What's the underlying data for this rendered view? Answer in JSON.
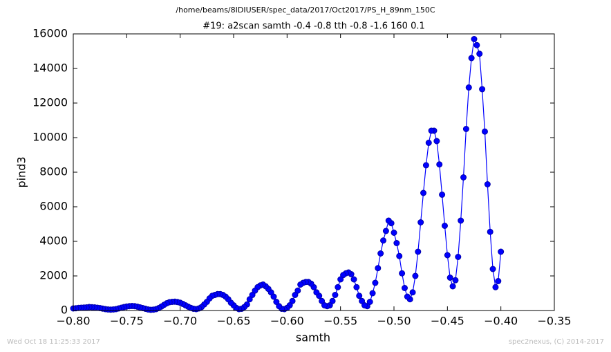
{
  "chart_data": {
    "type": "line",
    "suptitle": "/home/beams/8IDIUSER/spec_data/2017/Oct2017/PS_H_89nm_150C",
    "title": "#19: a2scan  samth -0.4 -0.8  tth -0.8 -1.6  160 0.1",
    "x_label": "samth",
    "y_label": "pind3",
    "footer_left": "Wed Oct 18 11:25:33 2017",
    "footer_right": "spec2nexus, (C) 2014-2017",
    "x": [
      -0.4,
      -0.4025,
      -0.405,
      -0.4075,
      -0.41,
      -0.4125,
      -0.415,
      -0.4175,
      -0.42,
      -0.4225,
      -0.425,
      -0.4275,
      -0.43,
      -0.4325,
      -0.435,
      -0.4375,
      -0.44,
      -0.4425,
      -0.445,
      -0.4475,
      -0.45,
      -0.4525,
      -0.455,
      -0.4575,
      -0.46,
      -0.4625,
      -0.465,
      -0.4675,
      -0.47,
      -0.4725,
      -0.475,
      -0.4775,
      -0.48,
      -0.4825,
      -0.485,
      -0.4875,
      -0.49,
      -0.4925,
      -0.495,
      -0.4975,
      -0.5,
      -0.5025,
      -0.505,
      -0.5075,
      -0.51,
      -0.5125,
      -0.515,
      -0.5175,
      -0.52,
      -0.5225,
      -0.525,
      -0.5275,
      -0.53,
      -0.5325,
      -0.535,
      -0.5375,
      -0.54,
      -0.5425,
      -0.545,
      -0.5475,
      -0.55,
      -0.5525,
      -0.555,
      -0.5575,
      -0.56,
      -0.5625,
      -0.565,
      -0.5675,
      -0.57,
      -0.5725,
      -0.575,
      -0.5775,
      -0.58,
      -0.5825,
      -0.585,
      -0.5875,
      -0.59,
      -0.5925,
      -0.595,
      -0.5975,
      -0.6,
      -0.6025,
      -0.605,
      -0.6075,
      -0.61,
      -0.6125,
      -0.615,
      -0.6175,
      -0.62,
      -0.6225,
      -0.625,
      -0.6275,
      -0.63,
      -0.6325,
      -0.635,
      -0.6375,
      -0.64,
      -0.6425,
      -0.645,
      -0.6475,
      -0.65,
      -0.6525,
      -0.655,
      -0.6575,
      -0.66,
      -0.6625,
      -0.665,
      -0.6675,
      -0.67,
      -0.6725,
      -0.675,
      -0.6775,
      -0.68,
      -0.6825,
      -0.685,
      -0.6875,
      -0.69,
      -0.6925,
      -0.695,
      -0.6975,
      -0.7,
      -0.7025,
      -0.705,
      -0.7075,
      -0.71,
      -0.7125,
      -0.715,
      -0.7175,
      -0.72,
      -0.7225,
      -0.725,
      -0.7275,
      -0.73,
      -0.7325,
      -0.735,
      -0.7375,
      -0.74,
      -0.7425,
      -0.745,
      -0.7475,
      -0.75,
      -0.7525,
      -0.755,
      -0.7575,
      -0.76,
      -0.7625,
      -0.765,
      -0.7675,
      -0.77,
      -0.7725,
      -0.775,
      -0.7775,
      -0.78,
      -0.7825,
      -0.785,
      -0.7875,
      -0.79,
      -0.7925,
      -0.795,
      -0.7975,
      -0.8
    ],
    "series": [
      {
        "name": "pind3",
        "color": "#0000ff",
        "marker_color": "#0000aa",
        "values": [
          3400,
          1700,
          1350,
          2400,
          4550,
          7300,
          10350,
          12800,
          14850,
          15350,
          15700,
          14600,
          12900,
          10500,
          7700,
          5200,
          3100,
          1750,
          1400,
          1900,
          3200,
          4900,
          6700,
          8450,
          9800,
          10400,
          10400,
          9700,
          8400,
          6800,
          5100,
          3400,
          2000,
          1050,
          650,
          800,
          1300,
          2150,
          3150,
          3900,
          4500,
          5050,
          5200,
          4600,
          4050,
          3300,
          2450,
          1600,
          1000,
          500,
          250,
          300,
          550,
          850,
          1350,
          1800,
          2100,
          2200,
          2150,
          2050,
          1800,
          1350,
          900,
          550,
          300,
          250,
          300,
          550,
          850,
          1050,
          1350,
          1550,
          1650,
          1650,
          1600,
          1500,
          1150,
          900,
          550,
          300,
          150,
          80,
          100,
          250,
          500,
          800,
          1050,
          1250,
          1400,
          1500,
          1450,
          1350,
          1150,
          900,
          650,
          350,
          200,
          100,
          80,
          150,
          300,
          450,
          650,
          800,
          900,
          950,
          950,
          900,
          850,
          700,
          500,
          350,
          200,
          120,
          80,
          100,
          150,
          220,
          300,
          380,
          450,
          490,
          510,
          500,
          480,
          420,
          330,
          230,
          140,
          80,
          50,
          40,
          60,
          100,
          140,
          180,
          220,
          250,
          260,
          250,
          230,
          200,
          160,
          120,
          80,
          60,
          50,
          60,
          80,
          110,
          140,
          160,
          180,
          190,
          200,
          180,
          170,
          160,
          150,
          130,
          120
        ]
      }
    ],
    "xlim": [
      -0.8,
      -0.35
    ],
    "ylim": [
      0,
      16000
    ],
    "xticks": [
      {
        "value": -0.8,
        "label": "−0.80"
      },
      {
        "value": -0.75,
        "label": "−0.75"
      },
      {
        "value": -0.7,
        "label": "−0.70"
      },
      {
        "value": -0.65,
        "label": "−0.65"
      },
      {
        "value": -0.6,
        "label": "−0.60"
      },
      {
        "value": -0.55,
        "label": "−0.55"
      },
      {
        "value": -0.5,
        "label": "−0.50"
      },
      {
        "value": -0.45,
        "label": "−0.45"
      },
      {
        "value": -0.4,
        "label": "−0.40"
      },
      {
        "value": -0.35,
        "label": "−0.35"
      }
    ],
    "yticks": [
      0,
      2000,
      4000,
      6000,
      8000,
      10000,
      12000,
      14000,
      16000
    ],
    "grid": false
  }
}
